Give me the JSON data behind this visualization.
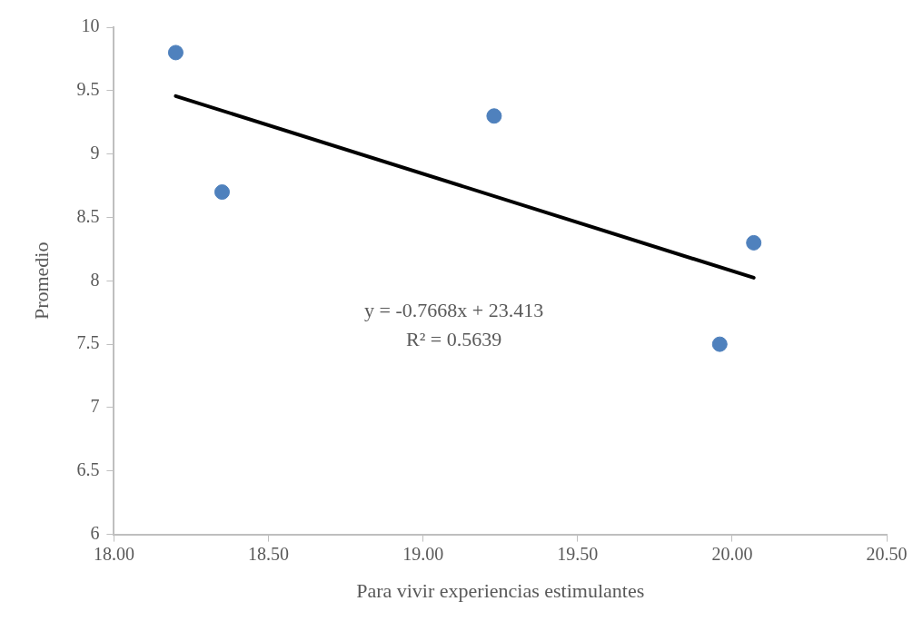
{
  "chart_data": {
    "type": "scatter",
    "xlabel": "Para vivir experiencias estimulantes",
    "ylabel": "Promedio",
    "x": [
      18.2,
      18.35,
      19.23,
      19.96,
      20.07
    ],
    "series": [
      {
        "color": "#4f81bd",
        "values": [
          9.8,
          8.7,
          9.3,
          7.5,
          8.3
        ],
        "marker": "circle"
      },
      {
        "type": "line",
        "color": "#000000",
        "x": [
          18.2,
          20.07
        ],
        "values": [
          9.457,
          8.024
        ],
        "marker": "none"
      }
    ],
    "xlim": [
      18,
      20.5
    ],
    "xticks": [
      {
        "value": 18,
        "label": "18.00"
      },
      {
        "value": 18.5,
        "label": "18.50"
      },
      {
        "value": 19,
        "label": "19.00"
      },
      {
        "value": 19.5,
        "label": "19.50"
      },
      {
        "value": 20,
        "label": "20.00"
      },
      {
        "value": 20.5,
        "label": "20.50"
      }
    ],
    "ylim": [
      6,
      10
    ],
    "yticks": [
      6,
      6.5,
      7,
      7.5,
      8,
      8.5,
      9,
      9.5,
      10
    ],
    "annotations": [
      "y = -0.7668x + 23.413",
      "R² = 0.5639"
    ],
    "grid": false,
    "legend": false
  }
}
